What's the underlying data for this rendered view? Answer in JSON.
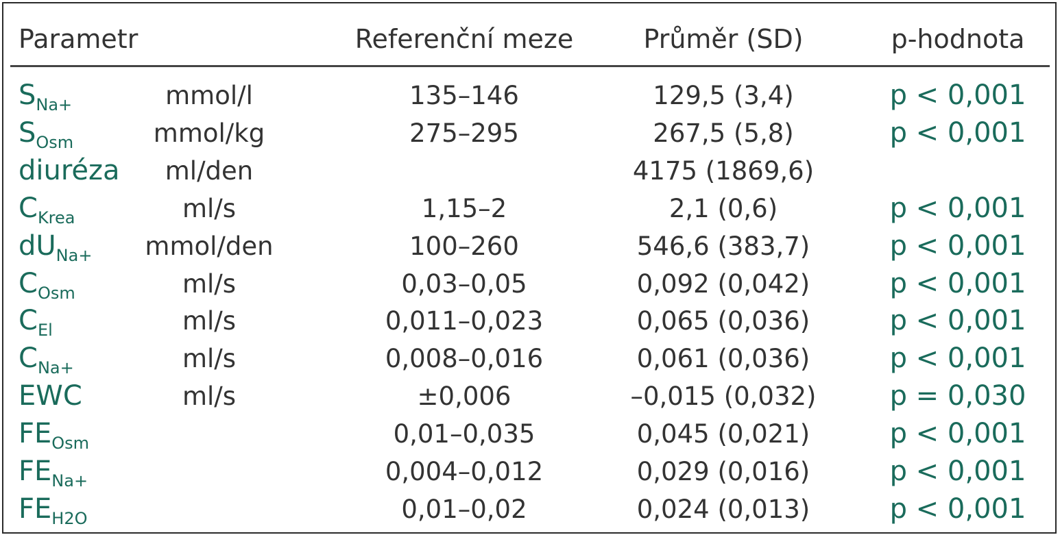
{
  "headers": {
    "parametr": "Parametr",
    "reference": "Referenční meze",
    "mean": "Průměr (SD)",
    "pvalue": "p-hodnota"
  },
  "rows": [
    {
      "base": "S",
      "sub": "Na+",
      "unit": "mmol/l",
      "ref": "135–146",
      "mean": "129,5 (3,4)",
      "p": "p < 0,001"
    },
    {
      "base": "S",
      "sub": "Osm",
      "unit": "mmol/kg",
      "ref": "275–295",
      "mean": "267,5 (5,8)",
      "p": "p < 0,001"
    },
    {
      "base": "diuréza",
      "sub": "",
      "unit": "ml/den",
      "ref": "",
      "mean": "4175 (1869,6)",
      "p": ""
    },
    {
      "base": "C",
      "sub": "Krea",
      "unit": "ml/s",
      "ref": "1,15–2",
      "mean": "2,1 (0,6)",
      "p": "p < 0,001"
    },
    {
      "base": "dU",
      "sub": "Na+",
      "unit": "mmol/den",
      "ref": "100–260",
      "mean": "546,6 (383,7)",
      "p": "p < 0,001"
    },
    {
      "base": "C",
      "sub": "Osm",
      "unit": "ml/s",
      "ref": "0,03–0,05",
      "mean": "0,092 (0,042)",
      "p": "p < 0,001"
    },
    {
      "base": "C",
      "sub": "El",
      "unit": "ml/s",
      "ref": "0,011–0,023",
      "mean": "0,065 (0,036)",
      "p": "p < 0,001"
    },
    {
      "base": "C",
      "sub": "Na+",
      "unit": "ml/s",
      "ref": "0,008–0,016",
      "mean": "0,061 (0,036)",
      "p": "p < 0,001"
    },
    {
      "base": "EWC",
      "sub": "",
      "unit": "ml/s",
      "ref": "±0,006",
      "mean": "–0,015 (0,032)",
      "p": "p = 0,030"
    },
    {
      "base": "FE",
      "sub": "Osm",
      "unit": "",
      "ref": "0,01–0,035",
      "mean": "0,045 (0,021)",
      "p": "p < 0,001"
    },
    {
      "base": "FE",
      "sub": "Na+",
      "unit": "",
      "ref": "0,004–0,012",
      "mean": "0,029 (0,016)",
      "p": "p < 0,001"
    },
    {
      "base": "FE",
      "sub": "H2O",
      "unit": "",
      "ref": "0,01–0,02",
      "mean": "0,024 (0,013)",
      "p": "p < 0,001"
    }
  ],
  "colors": {
    "accent": "#1a6b5b",
    "text": "#333333",
    "border": "#2a2a2a"
  }
}
